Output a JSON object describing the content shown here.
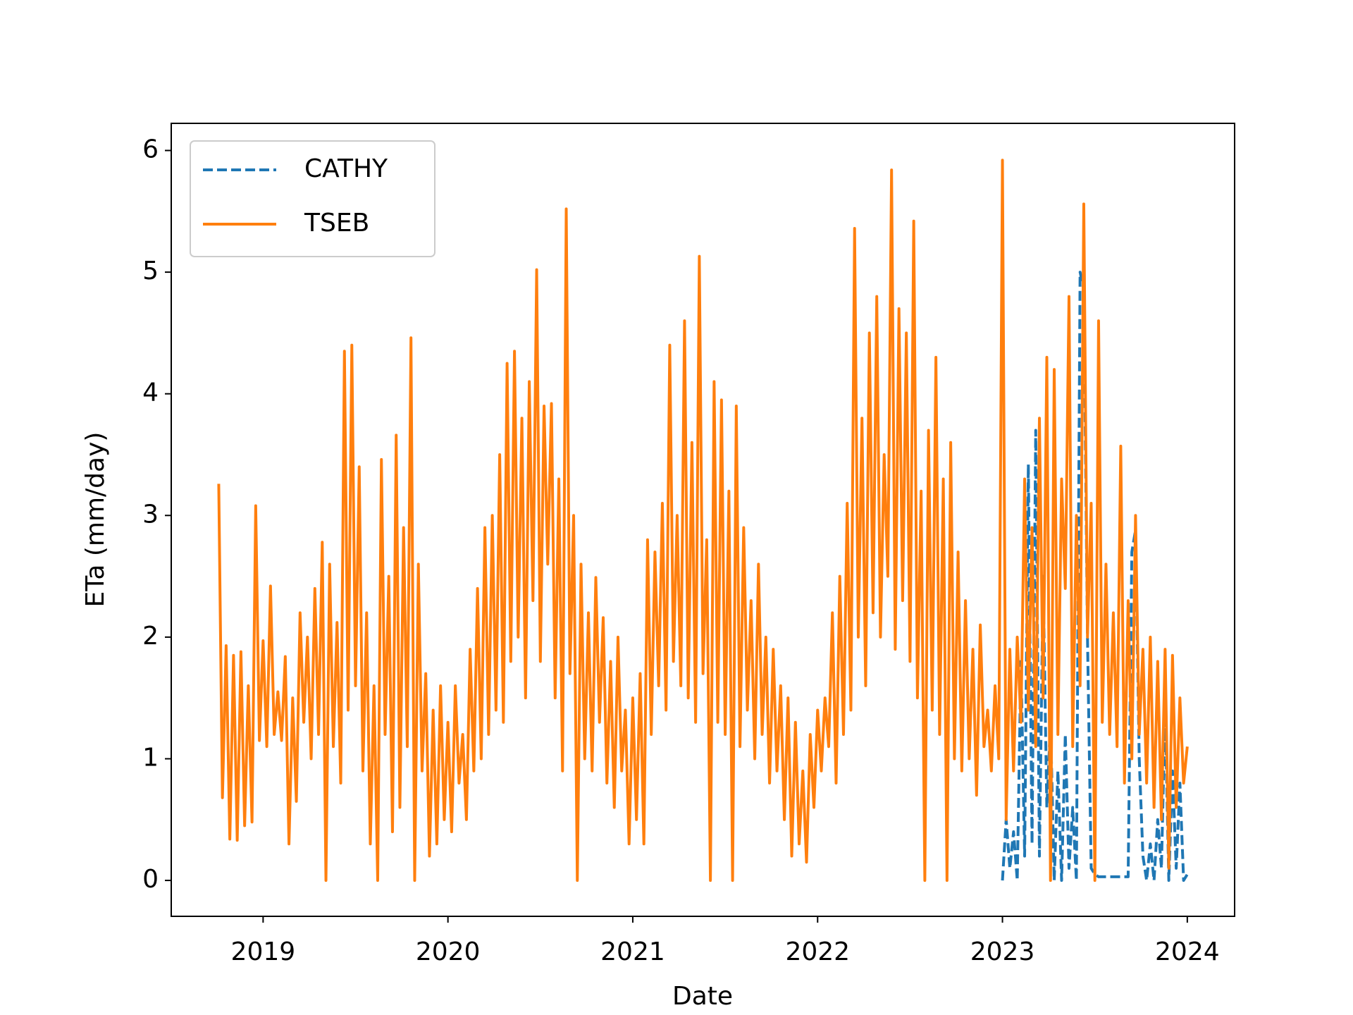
{
  "chart_data": {
    "type": "line",
    "x_label": "Date",
    "y_label": "ETa (mm/day)",
    "xlim": [
      2018.503,
      2024.256
    ],
    "xticks": [
      2019,
      2020,
      2021,
      2022,
      2023,
      2024
    ],
    "ylim": [
      -0.295,
      6.223
    ],
    "yticks": [
      0,
      1,
      2,
      3,
      4,
      5,
      6
    ],
    "legend": "upper left",
    "series": [
      {
        "name": "CATHY",
        "color": "#1f77b4",
        "linestyle": "dashed",
        "x": [
          2023.0,
          2023.02,
          2023.04,
          2023.06,
          2023.08,
          2023.1,
          2023.12,
          2023.14,
          2023.16,
          2023.18,
          2023.2,
          2023.22,
          2023.24,
          2023.26,
          2023.28,
          2023.3,
          2023.32,
          2023.34,
          2023.36,
          2023.38,
          2023.4,
          2023.42,
          2023.44,
          2023.46,
          2023.48,
          2023.5,
          2023.52,
          2023.54,
          2023.56,
          2023.58,
          2023.6,
          2023.62,
          2023.64,
          2023.66,
          2023.68,
          2023.7,
          2023.72,
          2023.74,
          2023.76,
          2023.78,
          2023.8,
          2023.82,
          2023.84,
          2023.86,
          2023.88,
          2023.9,
          2023.92,
          2023.94,
          2023.96,
          2023.98,
          2024.0
        ],
        "values": [
          0.0,
          0.5,
          0.1,
          0.4,
          0.0,
          1.8,
          0.2,
          3.42,
          0.3,
          3.7,
          0.2,
          2.5,
          0.6,
          1.3,
          0.0,
          0.9,
          0.0,
          1.2,
          0.1,
          0.6,
          0.0,
          5.0,
          4.86,
          2.0,
          0.1,
          0.05,
          0.03,
          0.03,
          0.03,
          0.03,
          0.03,
          0.03,
          0.03,
          0.03,
          0.03,
          2.7,
          2.88,
          1.0,
          0.2,
          0.0,
          0.3,
          0.0,
          0.5,
          0.1,
          1.43,
          0.0,
          0.9,
          0.1,
          0.8,
          0.0,
          0.05
        ]
      },
      {
        "name": "TSEB",
        "color": "#ff7f0e",
        "linestyle": "solid",
        "x": [
          2018.76,
          2018.78,
          2018.8,
          2018.82,
          2018.84,
          2018.86,
          2018.88,
          2018.9,
          2018.92,
          2018.94,
          2018.96,
          2018.98,
          2019.0,
          2019.02,
          2019.04,
          2019.06,
          2019.08,
          2019.1,
          2019.12,
          2019.14,
          2019.16,
          2019.18,
          2019.2,
          2019.22,
          2019.24,
          2019.26,
          2019.28,
          2019.3,
          2019.32,
          2019.34,
          2019.36,
          2019.38,
          2019.4,
          2019.42,
          2019.44,
          2019.46,
          2019.48,
          2019.5,
          2019.52,
          2019.54,
          2019.56,
          2019.58,
          2019.6,
          2019.62,
          2019.64,
          2019.66,
          2019.68,
          2019.7,
          2019.72,
          2019.74,
          2019.76,
          2019.78,
          2019.8,
          2019.82,
          2019.84,
          2019.86,
          2019.88,
          2019.9,
          2019.92,
          2019.94,
          2019.96,
          2019.98,
          2020.0,
          2020.02,
          2020.04,
          2020.06,
          2020.08,
          2020.1,
          2020.12,
          2020.14,
          2020.16,
          2020.18,
          2020.2,
          2020.22,
          2020.24,
          2020.26,
          2020.28,
          2020.3,
          2020.32,
          2020.34,
          2020.36,
          2020.38,
          2020.4,
          2020.42,
          2020.44,
          2020.46,
          2020.48,
          2020.5,
          2020.52,
          2020.54,
          2020.56,
          2020.58,
          2020.6,
          2020.62,
          2020.64,
          2020.66,
          2020.68,
          2020.7,
          2020.72,
          2020.74,
          2020.76,
          2020.78,
          2020.8,
          2020.82,
          2020.84,
          2020.86,
          2020.88,
          2020.9,
          2020.92,
          2020.94,
          2020.96,
          2020.98,
          2021.0,
          2021.02,
          2021.04,
          2021.06,
          2021.08,
          2021.1,
          2021.12,
          2021.14,
          2021.16,
          2021.18,
          2021.2,
          2021.22,
          2021.24,
          2021.26,
          2021.28,
          2021.3,
          2021.32,
          2021.34,
          2021.36,
          2021.38,
          2021.4,
          2021.42,
          2021.44,
          2021.46,
          2021.48,
          2021.5,
          2021.52,
          2021.54,
          2021.56,
          2021.58,
          2021.6,
          2021.62,
          2021.64,
          2021.66,
          2021.68,
          2021.7,
          2021.72,
          2021.74,
          2021.76,
          2021.78,
          2021.8,
          2021.82,
          2021.84,
          2021.86,
          2021.88,
          2021.9,
          2021.92,
          2021.94,
          2021.96,
          2021.98,
          2022.0,
          2022.02,
          2022.04,
          2022.06,
          2022.08,
          2022.1,
          2022.12,
          2022.14,
          2022.16,
          2022.18,
          2022.2,
          2022.22,
          2022.24,
          2022.26,
          2022.28,
          2022.3,
          2022.32,
          2022.34,
          2022.36,
          2022.38,
          2022.4,
          2022.42,
          2022.44,
          2022.46,
          2022.48,
          2022.5,
          2022.52,
          2022.54,
          2022.56,
          2022.58,
          2022.6,
          2022.62,
          2022.64,
          2022.66,
          2022.68,
          2022.7,
          2022.72,
          2022.74,
          2022.76,
          2022.78,
          2022.8,
          2022.82,
          2022.84,
          2022.86,
          2022.88,
          2022.9,
          2022.92,
          2022.94,
          2022.96,
          2022.98,
          2023.0,
          2023.02,
          2023.04,
          2023.06,
          2023.08,
          2023.1,
          2023.12,
          2023.14,
          2023.16,
          2023.18,
          2023.2,
          2023.22,
          2023.24,
          2023.26,
          2023.28,
          2023.3,
          2023.32,
          2023.34,
          2023.36,
          2023.38,
          2023.4,
          2023.42,
          2023.44,
          2023.46,
          2023.48,
          2023.5,
          2023.52,
          2023.54,
          2023.56,
          2023.58,
          2023.6,
          2023.62,
          2023.64,
          2023.66,
          2023.68,
          2023.7,
          2023.72,
          2023.74,
          2023.76,
          2023.78,
          2023.8,
          2023.82,
          2023.84,
          2023.86,
          2023.88,
          2023.9,
          2023.92,
          2023.94,
          2023.96,
          2023.98,
          2024.0
        ],
        "values": [
          3.26,
          0.68,
          1.93,
          0.34,
          1.85,
          0.33,
          1.88,
          0.45,
          1.6,
          0.48,
          3.08,
          1.15,
          1.97,
          1.1,
          2.42,
          1.2,
          1.55,
          1.15,
          1.84,
          0.3,
          1.5,
          0.65,
          2.2,
          1.3,
          2.0,
          1.0,
          2.4,
          1.2,
          2.78,
          0.0,
          2.6,
          1.1,
          2.12,
          0.8,
          4.35,
          1.4,
          4.4,
          1.6,
          3.4,
          0.9,
          2.2,
          0.3,
          1.6,
          0.0,
          3.46,
          1.2,
          2.5,
          0.4,
          3.66,
          0.6,
          2.9,
          1.1,
          4.46,
          0.0,
          2.6,
          0.9,
          1.7,
          0.2,
          1.4,
          0.3,
          1.6,
          0.5,
          1.3,
          0.4,
          1.6,
          0.8,
          1.2,
          0.5,
          1.9,
          0.9,
          2.4,
          1.0,
          2.9,
          1.2,
          3.0,
          1.4,
          3.5,
          1.3,
          4.25,
          1.8,
          4.35,
          2.0,
          3.8,
          1.5,
          4.1,
          2.3,
          5.02,
          1.8,
          3.9,
          2.6,
          3.92,
          1.5,
          3.3,
          0.9,
          5.52,
          1.7,
          3.0,
          0.0,
          2.6,
          1.0,
          2.2,
          0.9,
          2.49,
          1.3,
          2.16,
          0.8,
          1.8,
          0.6,
          2.0,
          0.9,
          1.4,
          0.3,
          1.5,
          0.5,
          1.7,
          0.3,
          2.8,
          1.2,
          2.7,
          1.6,
          3.1,
          1.4,
          4.4,
          1.8,
          3.0,
          1.6,
          4.6,
          1.5,
          3.6,
          1.3,
          5.13,
          1.7,
          2.8,
          0.0,
          4.1,
          1.3,
          3.95,
          1.2,
          3.2,
          0.0,
          3.9,
          1.1,
          2.9,
          1.4,
          2.3,
          1.0,
          2.6,
          1.2,
          2.0,
          0.8,
          1.9,
          0.9,
          1.6,
          0.5,
          1.5,
          0.2,
          1.3,
          0.3,
          0.9,
          0.15,
          1.2,
          0.6,
          1.4,
          0.9,
          1.5,
          1.1,
          2.2,
          0.8,
          2.5,
          1.2,
          3.1,
          1.4,
          5.36,
          2.0,
          3.8,
          1.6,
          4.5,
          2.2,
          4.8,
          2.0,
          3.5,
          2.5,
          5.84,
          1.9,
          4.7,
          2.3,
          4.5,
          1.8,
          5.42,
          1.5,
          3.2,
          0.0,
          3.7,
          1.4,
          4.3,
          1.2,
          3.3,
          0.0,
          3.6,
          1.0,
          2.7,
          0.9,
          2.3,
          1.0,
          1.9,
          0.7,
          2.1,
          1.1,
          1.4,
          0.9,
          1.6,
          1.0,
          5.92,
          0.5,
          1.9,
          0.9,
          2.0,
          1.3,
          3.3,
          1.4,
          2.9,
          1.1,
          3.8,
          1.5,
          4.3,
          0.0,
          4.2,
          1.2,
          3.3,
          2.4,
          4.8,
          1.1,
          3.0,
          1.6,
          5.56,
          2.0,
          3.1,
          0.0,
          4.6,
          1.3,
          2.6,
          1.2,
          2.2,
          1.1,
          3.57,
          0.8,
          2.3,
          1.0,
          3.0,
          1.2,
          1.9,
          0.8,
          2.0,
          0.6,
          1.8,
          0.5,
          1.9,
          0.1,
          1.85,
          0.6,
          1.5,
          0.8,
          1.1
        ]
      }
    ]
  }
}
